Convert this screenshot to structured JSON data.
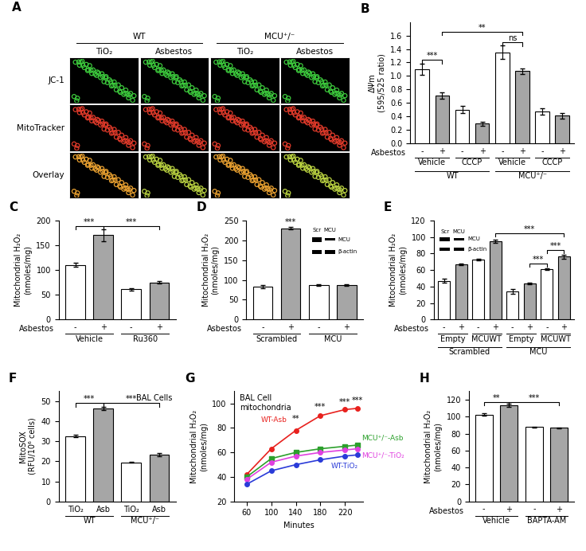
{
  "chart_data": [
    {
      "type": "image_grid",
      "panel_label": "A",
      "groups": [
        {
          "label": "WT",
          "columns": [
            "TiO₂",
            "Asbestos"
          ]
        },
        {
          "label": "MCU⁺/⁻",
          "columns": [
            "TiO₂",
            "Asbestos"
          ]
        }
      ],
      "rows": [
        "JC-1",
        "MitoTracker",
        "Overlay"
      ]
    },
    {
      "type": "bar",
      "panel_label": "B",
      "ylabel": "ΔΨm\n(595/525 ratio)",
      "row_label": "Asbestos",
      "categories": [
        "-",
        "+",
        "-",
        "+",
        "-",
        "+",
        "-",
        "+"
      ],
      "groups": [
        {
          "label": "Vehicle",
          "from": 0,
          "to": 1
        },
        {
          "label": "CCCP",
          "from": 2,
          "to": 3
        },
        {
          "label": "Vehicle",
          "from": 4,
          "to": 5
        },
        {
          "label": "CCCP",
          "from": 6,
          "to": 7
        }
      ],
      "supergroups": [
        {
          "label": "WT",
          "from": 0,
          "to": 3
        },
        {
          "label": "MCU⁺/⁻",
          "from": 4,
          "to": 7
        }
      ],
      "values": [
        1.1,
        0.71,
        0.5,
        0.29,
        1.35,
        1.07,
        0.47,
        0.41
      ],
      "errors": [
        0.08,
        0.05,
        0.05,
        0.03,
        0.1,
        0.04,
        0.05,
        0.04
      ],
      "colors": [
        "#ffffff",
        "#a6a6a6",
        "#ffffff",
        "#a6a6a6",
        "#ffffff",
        "#a6a6a6",
        "#ffffff",
        "#a6a6a6"
      ],
      "ylim": [
        0,
        1.8
      ],
      "yticks": [
        0.0,
        0.2,
        0.4,
        0.6,
        0.8,
        1.0,
        1.2,
        1.4,
        1.6
      ],
      "annotations": [
        {
          "text": "***",
          "from": 0,
          "to": 1,
          "y": 1.24
        },
        {
          "text": "**",
          "from": 1,
          "to": 5,
          "y": 1.66
        },
        {
          "text": "ns",
          "from": 4,
          "to": 5,
          "y": 1.5
        }
      ]
    },
    {
      "type": "bar",
      "panel_label": "C",
      "ylabel": "Mitochondrial H₂O₂\n(nmoles/mg)",
      "row_label": "Asbestos",
      "categories": [
        "-",
        "+",
        "-",
        "+"
      ],
      "groups": [
        {
          "label": "Vehicle",
          "from": 0,
          "to": 1
        },
        {
          "label": "Ru360",
          "from": 2,
          "to": 3
        }
      ],
      "values": [
        110,
        170,
        61,
        75
      ],
      "errors": [
        4,
        12,
        2,
        2
      ],
      "colors": [
        "#ffffff",
        "#a6a6a6",
        "#ffffff",
        "#a6a6a6"
      ],
      "ylim": [
        0,
        200
      ],
      "yticks": [
        0,
        50,
        100,
        150,
        200
      ],
      "annotations": [
        {
          "text": "***",
          "from": 0,
          "to": 1,
          "y": 188
        },
        {
          "text": "***",
          "from": 1,
          "to": 3,
          "y": 188
        }
      ]
    },
    {
      "type": "bar",
      "panel_label": "D",
      "ylabel": "Mitochondrial H₂O₂\n(nmoles/mg)",
      "row_label": "Asbestos",
      "categories": [
        "-",
        "+",
        "-",
        "+"
      ],
      "groups": [
        {
          "label": "Scrambled",
          "from": 0,
          "to": 1
        },
        {
          "label": "MCU",
          "from": 2,
          "to": 3
        }
      ],
      "values": [
        83,
        230,
        87,
        88
      ],
      "errors": [
        5,
        3,
        2,
        2
      ],
      "colors": [
        "#ffffff",
        "#a6a6a6",
        "#ffffff",
        "#a6a6a6"
      ],
      "ylim": [
        0,
        250
      ],
      "yticks": [
        0,
        50,
        100,
        150,
        200,
        250
      ],
      "annotations": [
        {
          "text": "***",
          "at": 1,
          "y": 236
        }
      ],
      "inset": {
        "columns": [
          "Scr",
          "MCU"
        ],
        "rows": [
          "MCU",
          "β-actin"
        ]
      }
    },
    {
      "type": "bar",
      "panel_label": "E",
      "ylabel": "Mitochondrial H₂O₂\n(nmoles/mg)",
      "row_label": "Asbestos",
      "categories": [
        "-",
        "+",
        "-",
        "+",
        "-",
        "+",
        "-",
        "+"
      ],
      "groups": [
        {
          "label": "Empty",
          "from": 0,
          "to": 1
        },
        {
          "label": "MCUWT",
          "from": 2,
          "to": 3
        },
        {
          "label": "Empty",
          "from": 4,
          "to": 5
        },
        {
          "label": "MCUWT",
          "from": 6,
          "to": 7
        }
      ],
      "supergroups": [
        {
          "label": "Scrambled",
          "from": 0,
          "to": 3
        },
        {
          "label": "MCU",
          "from": 4,
          "to": 7
        }
      ],
      "values": [
        47,
        67,
        73,
        95,
        34,
        44,
        61,
        76
      ],
      "errors": [
        2,
        1,
        1,
        2,
        3,
        1,
        1,
        2
      ],
      "colors": [
        "#ffffff",
        "#a6a6a6",
        "#ffffff",
        "#a6a6a6",
        "#ffffff",
        "#a6a6a6",
        "#ffffff",
        "#a6a6a6"
      ],
      "ylim": [
        0,
        120
      ],
      "yticks": [
        0,
        20,
        40,
        60,
        80,
        100,
        120
      ],
      "annotations": [
        {
          "text": "***",
          "from": 3,
          "to": 7,
          "y": 104
        },
        {
          "text": "***",
          "from": 5,
          "to": 6,
          "y": 68
        },
        {
          "text": "***",
          "from": 6,
          "to": 7,
          "y": 84
        }
      ],
      "inset": {
        "columns": [
          "Scr",
          "MCU"
        ],
        "rows": [
          "MCU",
          "β-actin"
        ]
      }
    },
    {
      "type": "bar",
      "panel_label": "F",
      "ylabel": "MitoSOX\n(RFU/10⁶ cells)",
      "text": "BAL Cells",
      "categories": [
        "TiO₂",
        "Asb",
        "TiO₂",
        "Asb"
      ],
      "supergroups": [
        {
          "label": "WT",
          "from": 0,
          "to": 1
        },
        {
          "label": "MCU⁺/⁻",
          "from": 2,
          "to": 3
        }
      ],
      "values": [
        32.5,
        46.5,
        19.5,
        23.5
      ],
      "errors": [
        0.6,
        0.8,
        0.3,
        0.8
      ],
      "colors": [
        "#ffffff",
        "#a6a6a6",
        "#ffffff",
        "#a6a6a6"
      ],
      "ylim": [
        0,
        55
      ],
      "yticks": [
        0,
        10,
        20,
        30,
        40,
        50
      ],
      "annotations": [
        {
          "text": "***",
          "from": 0,
          "to": 1,
          "y": 49
        },
        {
          "text": "***",
          "from": 1,
          "to": 3,
          "y": 49
        }
      ]
    },
    {
      "type": "line",
      "panel_label": "G",
      "text": "BAL Cell\nmitochondria",
      "xlabel": "Minutes",
      "ylabel": "Mitochondrial H₂O₂\n(nmoles/mg)",
      "x": [
        60,
        100,
        140,
        180,
        220,
        240
      ],
      "series": [
        {
          "name": "WT-Asb",
          "color": "#e8211e",
          "marker": "circle",
          "values": [
            42,
            63,
            78,
            90,
            95,
            96
          ]
        },
        {
          "name": "MCU⁺/⁻-Asb",
          "color": "#2ca02c",
          "marker": "square",
          "values": [
            40,
            55,
            60,
            63,
            65,
            66
          ]
        },
        {
          "name": "MCU⁺/⁻-TiO₂",
          "color": "#e040e0",
          "marker": "circle",
          "values": [
            38,
            52,
            57,
            60,
            62,
            63
          ]
        },
        {
          "name": "WT-TiO₂",
          "color": "#2a3bd8",
          "marker": "circle",
          "values": [
            34,
            45,
            50,
            54,
            57,
            58
          ]
        }
      ],
      "xlim": [
        40,
        250
      ],
      "xticks": [
        60,
        100,
        140,
        180,
        220
      ],
      "ylim": [
        20,
        110
      ],
      "yticks": [
        20,
        40,
        60,
        80,
        100
      ],
      "annotations": [
        {
          "text": "**",
          "x": 140,
          "y": 84
        },
        {
          "text": "***",
          "x": 180,
          "y": 94
        },
        {
          "text": "***",
          "x": 220,
          "y": 98
        },
        {
          "text": "***",
          "x": 240,
          "y": 99
        }
      ]
    },
    {
      "type": "bar",
      "panel_label": "H",
      "ylabel": "Mitochondrial H₂O₂\n(nmoles/mg)",
      "row_label": "Asbestos",
      "categories": [
        "-",
        "+",
        "-",
        "+"
      ],
      "groups": [
        {
          "label": "Vehicle",
          "from": 0,
          "to": 1
        },
        {
          "label": "BAPTA-AM",
          "from": 2,
          "to": 3
        }
      ],
      "values": [
        102.5,
        113.5,
        88,
        87
      ],
      "errors": [
        1.5,
        2,
        0.5,
        0.5
      ],
      "colors": [
        "#ffffff",
        "#a6a6a6",
        "#ffffff",
        "#a6a6a6"
      ],
      "ylim": [
        0,
        130
      ],
      "yticks": [
        0,
        20,
        40,
        60,
        80,
        100,
        120
      ],
      "annotations": [
        {
          "text": "**",
          "from": 0,
          "to": 1,
          "y": 117
        },
        {
          "text": "***",
          "from": 1,
          "to": 3,
          "y": 117
        }
      ]
    }
  ]
}
